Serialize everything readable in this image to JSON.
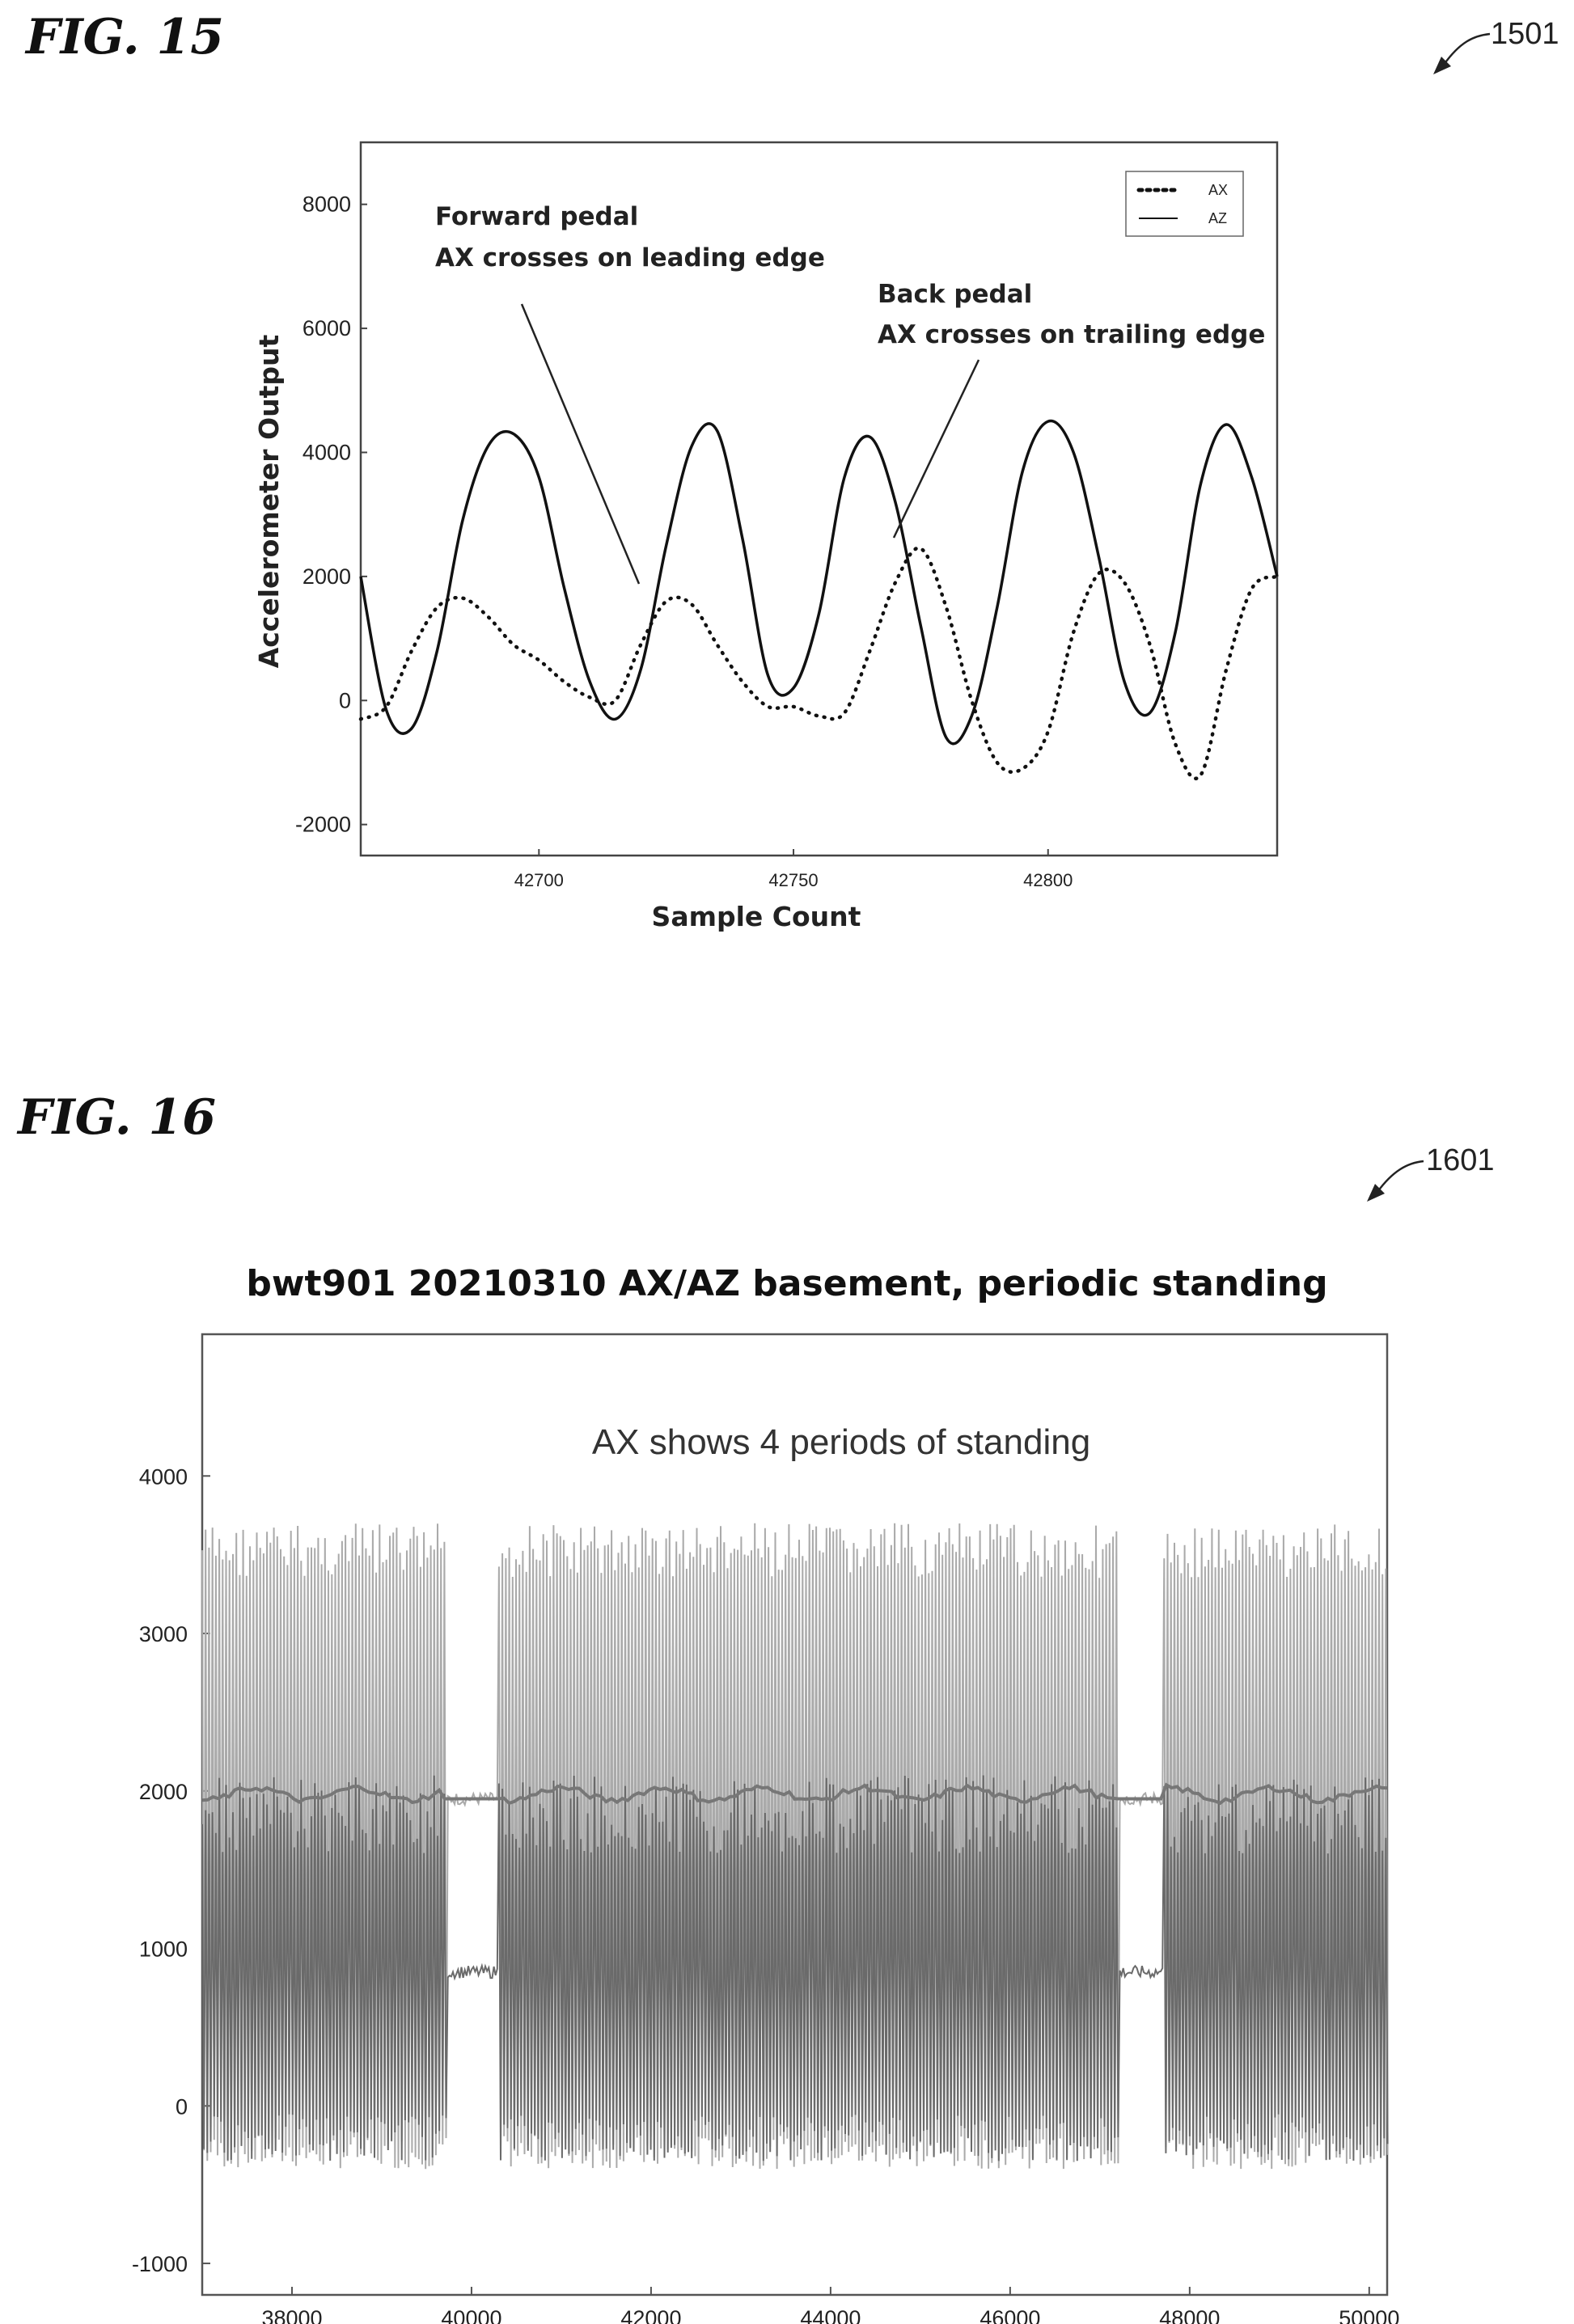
{
  "figures": [
    {
      "label": "FIG. 15",
      "ref": "1501"
    },
    {
      "label": "FIG. 16",
      "ref": "1601"
    }
  ],
  "chart_data": [
    {
      "type": "line",
      "title": "",
      "xlabel": "Sample Count",
      "ylabel": "Accelerometer Output",
      "xlim": [
        42665,
        42845
      ],
      "ylim": [
        -2500,
        9000
      ],
      "x_ticks": [
        42700,
        42750,
        42800
      ],
      "y_ticks": [
        -2000,
        0,
        2000,
        4000,
        6000,
        8000
      ],
      "x_tick_labels": [
        "42700",
        "42750",
        "42800"
      ],
      "y_tick_labels": [
        "-2000",
        "0",
        "2000",
        "4000",
        "6000",
        "8000"
      ],
      "legend": {
        "position": "top-right",
        "entries": [
          "AX",
          "AZ"
        ]
      },
      "series": [
        {
          "name": "AX",
          "style": "dotted",
          "x": [
            42665,
            42670,
            42675,
            42680,
            42685,
            42690,
            42695,
            42700,
            42705,
            42710,
            42715,
            42720,
            42725,
            42730,
            42735,
            42740,
            42745,
            42750,
            42755,
            42760,
            42765,
            42770,
            42775,
            42780,
            42785,
            42790,
            42795,
            42800,
            42805,
            42810,
            42815,
            42820,
            42825,
            42830,
            42835,
            42840,
            42845
          ],
          "y": [
            -300,
            -100,
            800,
            1500,
            1650,
            1350,
            900,
            650,
            300,
            50,
            0,
            900,
            1600,
            1550,
            900,
            300,
            -100,
            -100,
            -250,
            -200,
            800,
            1900,
            2450,
            1500,
            0,
            -1000,
            -1100,
            -500,
            1100,
            2050,
            1900,
            900,
            -700,
            -1200,
            500,
            1800,
            2000
          ]
        },
        {
          "name": "AZ",
          "style": "solid",
          "x": [
            42665,
            42670,
            42675,
            42680,
            42685,
            42690,
            42695,
            42700,
            42705,
            42710,
            42715,
            42720,
            42725,
            42730,
            42735,
            42740,
            42745,
            42750,
            42755,
            42760,
            42765,
            42770,
            42775,
            42780,
            42785,
            42790,
            42795,
            42800,
            42805,
            42810,
            42815,
            42820,
            42825,
            42830,
            42835,
            42840,
            42845
          ],
          "y": [
            2000,
            -150,
            -450,
            800,
            2900,
            4100,
            4300,
            3600,
            1800,
            300,
            -300,
            500,
            2500,
            4100,
            4350,
            2600,
            400,
            200,
            1400,
            3600,
            4250,
            3200,
            1200,
            -600,
            -250,
            1500,
            3700,
            4500,
            4000,
            2300,
            300,
            -200,
            1100,
            3500,
            4450,
            3600,
            2000
          ]
        }
      ],
      "annotations": [
        {
          "lines": [
            "Forward pedal",
            "AX crosses on leading edge"
          ]
        },
        {
          "lines": [
            "Back pedal",
            "AX crosses on trailing edge"
          ]
        }
      ]
    },
    {
      "type": "line",
      "title": "bwt901 20210310 AX/AZ basement, periodic standing",
      "xlabel": "",
      "ylabel": "",
      "xlim": [
        37000,
        50200
      ],
      "ylim": [
        -1200,
        4900
      ],
      "x_ticks": [
        38000,
        40000,
        42000,
        44000,
        46000,
        48000,
        50000
      ],
      "y_ticks": [
        -1000,
        0,
        1000,
        2000,
        3000,
        4000
      ],
      "x_tick_labels": [
        "38000",
        "40000",
        "42000",
        "44000",
        "46000",
        "48000",
        "50000"
      ],
      "y_tick_labels": [
        "-1000",
        "0",
        "1000",
        "2000",
        "3000",
        "4000"
      ],
      "annotation": "AX shows 4 periods of standing",
      "standing_periods": [
        [
          39700,
          40300
        ],
        [
          47200,
          47700
        ]
      ],
      "series": [
        {
          "style": "light",
          "cycle_max": 3700,
          "cycle_min": -400,
          "standing_level": 1950
        },
        {
          "style": "dark",
          "cycle_max": 2100,
          "cycle_min": -350,
          "standing_level": 850,
          "mean_trace_level": 1980
        }
      ]
    }
  ]
}
